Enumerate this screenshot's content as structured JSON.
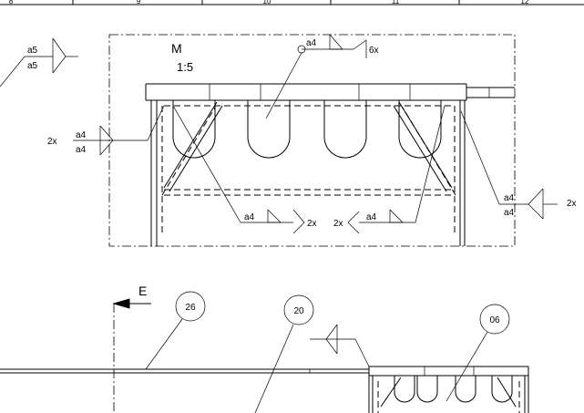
{
  "title_strip": {
    "cells": [
      "8",
      "9",
      "10",
      "11",
      "12"
    ]
  },
  "detail": {
    "name": "M",
    "scale": "1:5"
  },
  "welds": {
    "top_left": {
      "upper": "a5",
      "lower": "a5"
    },
    "top_center": {
      "size": "a4",
      "count": "6x"
    },
    "left": {
      "count": "2x",
      "upper": "a4",
      "lower": "a4"
    },
    "bottom_left": {
      "size": "a4",
      "count": "2x"
    },
    "bottom_right": {
      "count": "2x",
      "size": "a4"
    },
    "right": {
      "upper": "a4",
      "lower": "a4",
      "count": "2x"
    }
  },
  "section": {
    "label": "E"
  },
  "balloons": {
    "b1": "26",
    "b2": "20",
    "b3": "06"
  }
}
